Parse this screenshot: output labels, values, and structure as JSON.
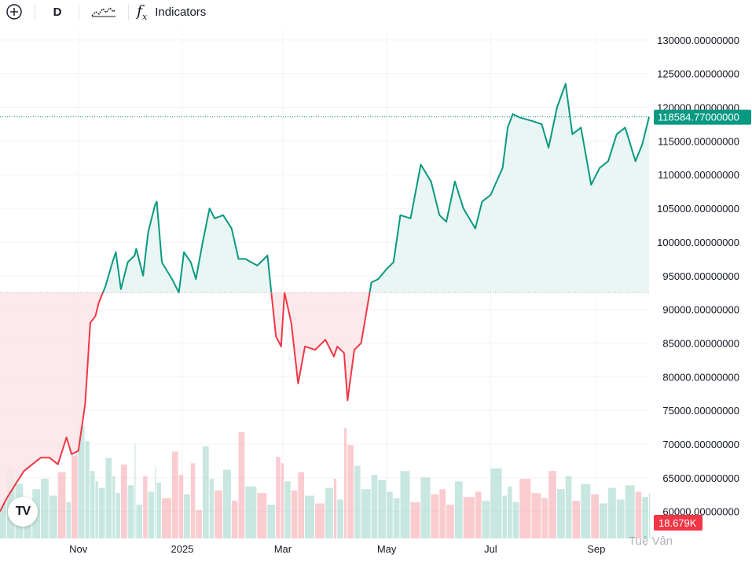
{
  "toolbar": {
    "add_icon": "plus-circle-icon",
    "interval_label": "D",
    "chart_type_icon": "line-chart-icon",
    "indicators_icon": "fx-icon",
    "indicators_label": "Indicators"
  },
  "logo": {
    "icon": "tradingview-logo",
    "text": "TV"
  },
  "watermark": "Tuệ Vân",
  "colors": {
    "up": "#089981",
    "down": "#f23645",
    "up_fill": "#e6f4f1",
    "down_fill": "#fde5e7",
    "grid": "#f0f3fa"
  },
  "chart_data": {
    "type": "line",
    "title": "",
    "xlabel": "",
    "ylabel": "",
    "ylim": [
      56000,
      131500
    ],
    "baseline": 92500,
    "last_price": 118584.77,
    "last_price_label": "118584.77000000",
    "volume_label": "18.679K",
    "yticks": [
      "130000.00000000",
      "125000.00000000",
      "120000.00000000",
      "115000.00000000",
      "110000.00000000",
      "105000.00000000",
      "100000.00000000",
      "95000.00000000",
      "90000.00000000",
      "85000.00000000",
      "80000.00000000",
      "75000.00000000",
      "70000.00000000",
      "65000.00000000",
      "60000.00000000"
    ],
    "ytick_values": [
      130000,
      125000,
      120000,
      115000,
      110000,
      105000,
      100000,
      95000,
      90000,
      85000,
      80000,
      75000,
      70000,
      65000,
      60000
    ],
    "xticks": [
      "Nov",
      "2025",
      "Mar",
      "May",
      "Jul",
      "Sep"
    ],
    "xtick_dates": [
      "2024-11-01",
      "2025-01-01",
      "2025-03-01",
      "2025-05-01",
      "2025-07-01",
      "2025-09-01"
    ],
    "x": [
      "2024-09-16",
      "2024-09-20",
      "2024-09-25",
      "2024-09-30",
      "2024-10-05",
      "2024-10-10",
      "2024-10-15",
      "2024-10-20",
      "2024-10-25",
      "2024-10-28",
      "2024-11-01",
      "2024-11-05",
      "2024-11-08",
      "2024-11-11",
      "2024-11-13",
      "2024-11-17",
      "2024-11-21",
      "2024-11-23",
      "2024-11-26",
      "2024-11-30",
      "2024-12-04",
      "2024-12-05",
      "2024-12-09",
      "2024-12-12",
      "2024-12-16",
      "2024-12-17",
      "2024-12-20",
      "2024-12-26",
      "2024-12-30",
      "2025-01-02",
      "2025-01-06",
      "2025-01-09",
      "2025-01-13",
      "2025-01-17",
      "2025-01-20",
      "2025-01-25",
      "2025-01-30",
      "2025-02-03",
      "2025-02-07",
      "2025-02-14",
      "2025-02-20",
      "2025-02-25",
      "2025-02-28",
      "2025-03-02",
      "2025-03-06",
      "2025-03-10",
      "2025-03-14",
      "2025-03-20",
      "2025-03-26",
      "2025-03-31",
      "2025-04-02",
      "2025-04-06",
      "2025-04-08",
      "2025-04-12",
      "2025-04-16",
      "2025-04-22",
      "2025-04-26",
      "2025-05-01",
      "2025-05-05",
      "2025-05-09",
      "2025-05-15",
      "2025-05-21",
      "2025-05-27",
      "2025-06-01",
      "2025-06-05",
      "2025-06-10",
      "2025-06-15",
      "2025-06-22",
      "2025-06-26",
      "2025-07-01",
      "2025-07-08",
      "2025-07-11",
      "2025-07-14",
      "2025-07-18",
      "2025-07-25",
      "2025-07-31",
      "2025-08-04",
      "2025-08-09",
      "2025-08-14",
      "2025-08-18",
      "2025-08-23",
      "2025-08-29",
      "2025-09-03",
      "2025-09-08",
      "2025-09-13",
      "2025-09-18",
      "2025-09-24",
      "2025-09-28",
      "2025-10-02"
    ],
    "values": [
      60000,
      62000,
      64000,
      66000,
      67000,
      68000,
      68000,
      67000,
      71000,
      68500,
      69000,
      76000,
      88000,
      89000,
      91000,
      93500,
      97000,
      98500,
      93000,
      97000,
      98000,
      99000,
      95000,
      101500,
      105500,
      106000,
      97000,
      94500,
      92500,
      98500,
      97000,
      94500,
      100000,
      105000,
      103500,
      104000,
      102000,
      97500,
      97500,
      96500,
      98000,
      86000,
      84500,
      92500,
      88000,
      79000,
      84500,
      84000,
      85500,
      83000,
      84500,
      83500,
      76500,
      84000,
      85000,
      94000,
      94500,
      96000,
      97000,
      104000,
      103500,
      111500,
      109000,
      104000,
      103000,
      109000,
      105000,
      102000,
      106000,
      107000,
      111000,
      117000,
      119000,
      118500,
      118000,
      117500,
      114000,
      120000,
      123500,
      116000,
      117000,
      108500,
      111000,
      112000,
      116000,
      117000,
      112000,
      114500,
      118585
    ],
    "volume": [
      0.3,
      0.55,
      0.42,
      0.2,
      0.38,
      0.46,
      0.33,
      0.51,
      0.28,
      0.64,
      0.87,
      0.75,
      0.52,
      0.44,
      0.39,
      0.62,
      0.48,
      0.35,
      0.57,
      0.41,
      0.73,
      0.26,
      0.48,
      0.36,
      0.55,
      0.43,
      0.31,
      0.67,
      0.49,
      0.34,
      0.58,
      0.22,
      0.71,
      0.46,
      0.37,
      0.53,
      0.29,
      0.82,
      0.4,
      0.35,
      0.26,
      0.63,
      0.58,
      0.44,
      0.37,
      0.51,
      0.33,
      0.27,
      0.39,
      0.46,
      0.3,
      0.85,
      0.72,
      0.56,
      0.38,
      0.49,
      0.45,
      0.36,
      0.31,
      0.52,
      0.28,
      0.47,
      0.34,
      0.38,
      0.26,
      0.44,
      0.32,
      0.36,
      0.29,
      0.54,
      0.33,
      0.4,
      0.28,
      0.46,
      0.35,
      0.31,
      0.52,
      0.38,
      0.48,
      0.29,
      0.42,
      0.34,
      0.27,
      0.39,
      0.3,
      0.41,
      0.36,
      0.32,
      0.35
    ]
  }
}
